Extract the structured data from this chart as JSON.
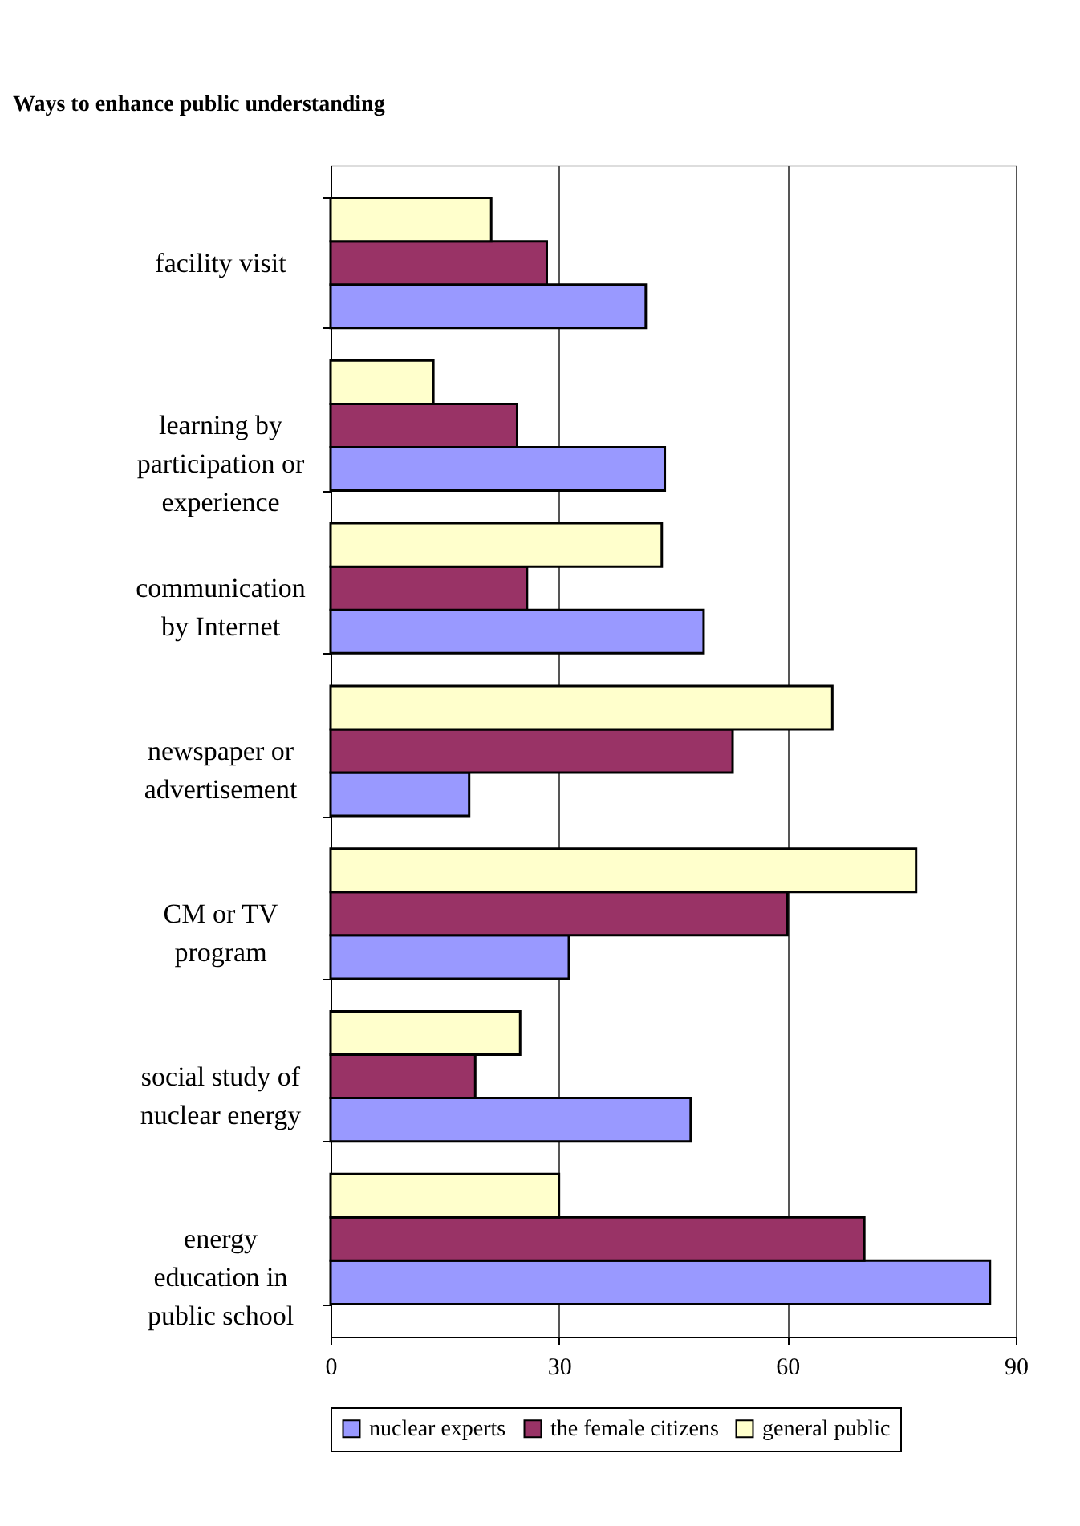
{
  "chart_data": {
    "type": "bar",
    "orientation": "horizontal",
    "title": "Ways to enhance public understanding",
    "categories": [
      "facility visit",
      "learning by\nparticipation or\nexperience",
      "communication\nby Internet",
      "newspaper or\nadvertisement",
      "CM or TV\nprogram",
      "social study of\nnuclear energy",
      "energy\neducation in\npublic school"
    ],
    "series": [
      {
        "name": "nuclear experts",
        "color": "#9999ff",
        "values": [
          41.4,
          43.9,
          49.0,
          18.2,
          31.3,
          47.3,
          86.6
        ]
      },
      {
        "name": "the female citizens",
        "color": "#993366",
        "values": [
          28.4,
          24.5,
          25.8,
          52.8,
          60.0,
          19.0,
          70.1
        ]
      },
      {
        "name": "general public",
        "color": "#ffffcc",
        "values": [
          21.1,
          13.5,
          43.5,
          65.9,
          76.9,
          24.9,
          30.0
        ]
      }
    ],
    "xlim": [
      0,
      90
    ],
    "xticks": [
      0,
      30,
      60,
      90
    ],
    "grid": "x",
    "legend": "bottom"
  }
}
